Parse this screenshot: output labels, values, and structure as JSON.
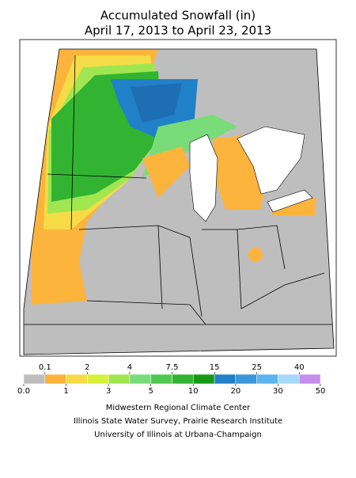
{
  "header": {
    "title": "Accumulated Snowfall (in)",
    "subtitle": "April 17, 2013 to April 23, 2013"
  },
  "legend": {
    "breaks": [
      {
        "value": 0,
        "label": "0.0"
      },
      0.1,
      1,
      2,
      3,
      4,
      5,
      7.5,
      10,
      15,
      20,
      25,
      30,
      40,
      50
    ],
    "colors": [
      "#bebebe",
      "#fcb43c",
      "#f5dc46",
      "#d7f03c",
      "#a0e650",
      "#78dc78",
      "#50c850",
      "#32b432",
      "#169a16",
      "#2080c8",
      "#3c96dc",
      "#5ab4f0",
      "#a6d8fa",
      "#c88cf0"
    ]
  },
  "credits": [
    "Midwestern Regional Climate Center",
    "Illinois State Water Survey, Prairie Research Institute",
    "University of Illinois at Urbana-Champaign"
  ]
}
